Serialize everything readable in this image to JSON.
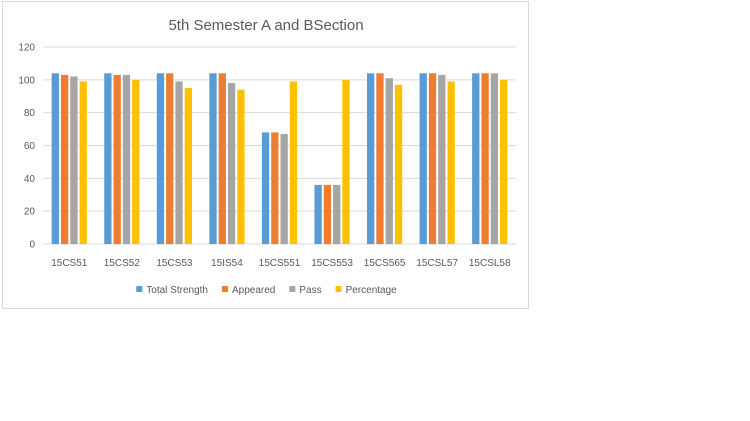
{
  "chart_data": {
    "type": "bar",
    "title": "5th Semester A and BSection",
    "xlabel": "",
    "ylabel": "",
    "ylim": [
      0,
      120
    ],
    "yticks": [
      0,
      20,
      40,
      60,
      80,
      100,
      120
    ],
    "grid": true,
    "legend_position": "bottom",
    "categories": [
      "15CS51",
      "15CS52",
      "15CS53",
      "15IS54",
      "15CS551",
      "15CS553",
      "15CS565",
      "15CSL57",
      "15CSL58"
    ],
    "series": [
      {
        "name": "Total Strength",
        "color": "#5b9bd5",
        "values": [
          104,
          104,
          104,
          104,
          68,
          36,
          104,
          104,
          104
        ]
      },
      {
        "name": "Appeared",
        "color": "#ed7d31",
        "values": [
          103,
          103,
          104,
          104,
          68,
          36,
          104,
          104,
          104
        ]
      },
      {
        "name": "Pass",
        "color": "#a5a5a5",
        "values": [
          102,
          103,
          99,
          98,
          67,
          36,
          101,
          103,
          104
        ]
      },
      {
        "name": "Percentage",
        "color": "#ffc000",
        "values": [
          99,
          100,
          95,
          94,
          99,
          100,
          97,
          99,
          100
        ]
      }
    ],
    "colors": {
      "grid": "#d9d9d9",
      "text": "#595959"
    }
  }
}
